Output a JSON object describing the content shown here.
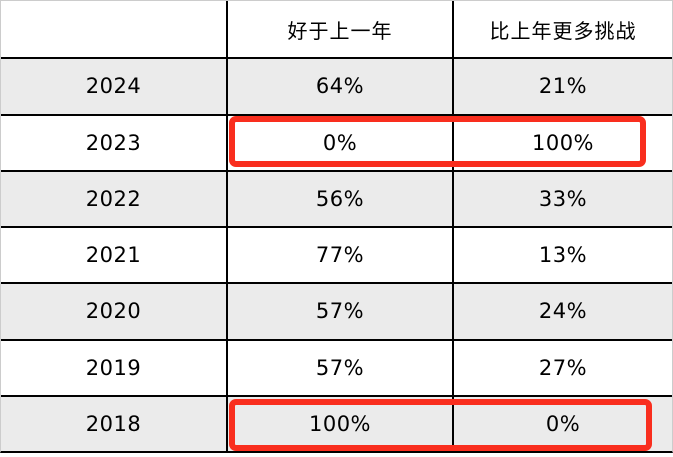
{
  "table": {
    "headers": {
      "year_col": "",
      "better_col": "好于上一年",
      "challenge_col": "比上年更多挑战"
    },
    "rows": [
      {
        "year": "2024",
        "better": "64%",
        "challenge": "21%"
      },
      {
        "year": "2023",
        "better": "0%",
        "challenge": "100%"
      },
      {
        "year": "2022",
        "better": "56%",
        "challenge": "33%"
      },
      {
        "year": "2021",
        "better": "77%",
        "challenge": "13%"
      },
      {
        "year": "2020",
        "better": "57%",
        "challenge": "24%"
      },
      {
        "year": "2019",
        "better": "57%",
        "challenge": "27%"
      },
      {
        "year": "2018",
        "better": "100%",
        "challenge": "0%"
      }
    ],
    "highlighted_years": [
      "2023",
      "2018"
    ]
  },
  "colors": {
    "row_shade": "#ebebeb",
    "highlight_red": "#f92e1e",
    "grid_line": "#000000",
    "outer_border": "#cccccc"
  },
  "chart_data": {
    "type": "table",
    "title": "",
    "columns": [
      "",
      "好于上一年",
      "比上年更多挑战"
    ],
    "categories": [
      "2024",
      "2023",
      "2022",
      "2021",
      "2020",
      "2019",
      "2018"
    ],
    "series": [
      {
        "name": "好于上一年",
        "values": [
          64,
          0,
          56,
          77,
          57,
          57,
          100
        ]
      },
      {
        "name": "比上年更多挑战",
        "values": [
          21,
          100,
          33,
          13,
          24,
          27,
          0
        ]
      }
    ],
    "unit": "%",
    "annotations": [
      {
        "type": "red-box",
        "row": "2023",
        "cells": [
          "0%",
          "100%"
        ]
      },
      {
        "type": "red-box",
        "row": "2018",
        "cells": [
          "100%",
          "0%"
        ]
      }
    ],
    "layout": {
      "shaded_rows": [
        "2024",
        "2022",
        "2020",
        "2018"
      ],
      "grid": true
    }
  }
}
